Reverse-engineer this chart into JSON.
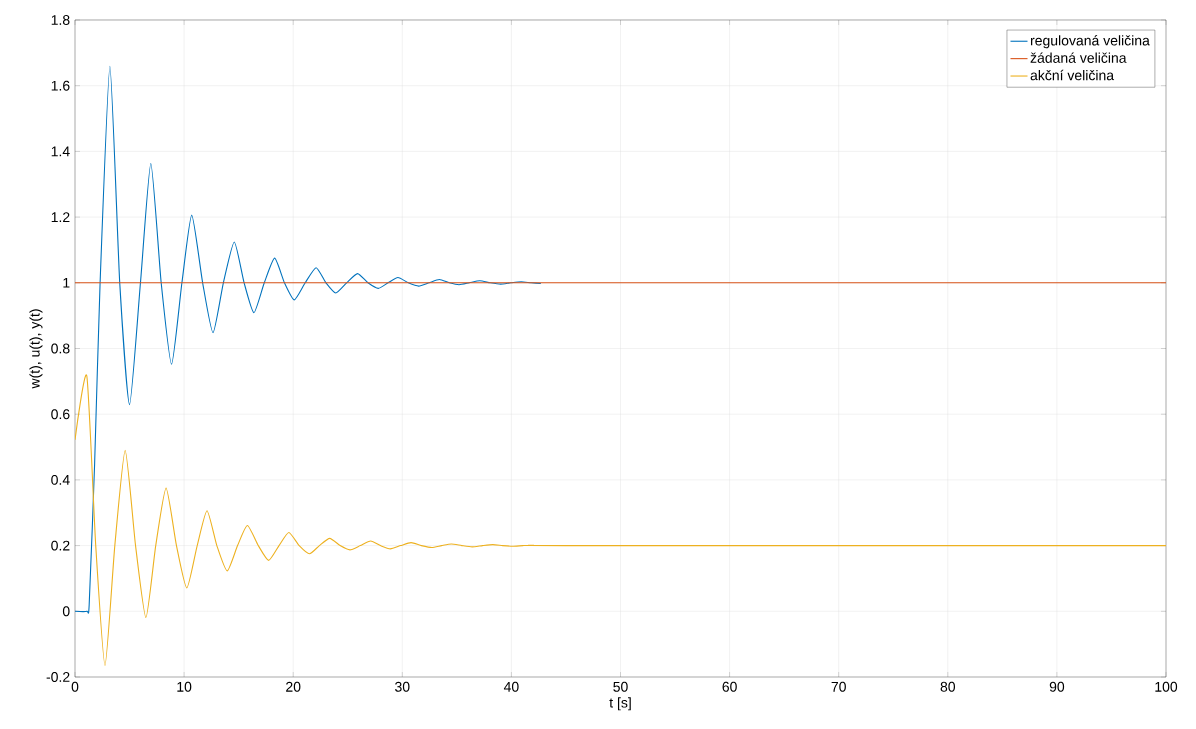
{
  "chart_data": {
    "type": "line",
    "xlabel": "t [s]",
    "ylabel": "w(t), u(t), y(t)",
    "xlim": [
      0,
      100
    ],
    "ylim": [
      -0.2,
      1.8
    ],
    "xticks": [
      0,
      10,
      20,
      30,
      40,
      50,
      60,
      70,
      80,
      90,
      100
    ],
    "yticks": [
      -0.2,
      0,
      0.2,
      0.4,
      0.6,
      0.8,
      1,
      1.2,
      1.4,
      1.6,
      1.8
    ],
    "grid": true,
    "legend": "top right",
    "series": [
      {
        "name": "regulovaná veličina",
        "color": "#0072bd",
        "x": [
          0,
          1.1,
          1.3,
          1.8,
          2.3,
          3.2,
          4.1,
          5.0,
          6.0,
          6.95,
          7.9,
          8.85,
          9.8,
          10.7,
          11.7,
          12.65,
          13.6,
          14.6,
          15.5,
          16.4,
          17.35,
          18.3,
          19.2,
          20.1,
          21.1,
          22.1,
          23.0,
          23.9,
          24.9,
          25.9,
          26.85,
          27.8,
          28.7,
          29.6,
          30.55,
          31.5,
          32.45,
          33.4,
          34.3,
          35.2,
          36.15,
          37.1,
          38.05,
          39.0,
          39.95,
          40.9,
          41.8,
          42.7
        ],
        "values": [
          0,
          0,
          0.02,
          0.45,
          1.0,
          1.659,
          1.0,
          0.629,
          1.0,
          1.363,
          1.0,
          0.752,
          1.0,
          1.206,
          1.0,
          0.848,
          1.0,
          1.124,
          1.0,
          0.909,
          1.0,
          1.075,
          1.0,
          0.948,
          1.0,
          1.046,
          1.0,
          0.969,
          1.0,
          1.028,
          1.0,
          0.983,
          1.0,
          1.016,
          1.0,
          0.99,
          1.0,
          1.01,
          1.0,
          0.994,
          1.0,
          1.006,
          1.0,
          0.996,
          1.0,
          1.003,
          1.0,
          0.998
        ]
      },
      {
        "name": "žádaná veličina",
        "color": "#d95319",
        "x": [
          0,
          100
        ],
        "values": [
          1,
          1
        ]
      },
      {
        "name": "akční veličina",
        "color": "#edb120",
        "x": [
          0,
          1.08,
          1.9,
          2.75,
          3.65,
          4.6,
          5.55,
          6.5,
          7.4,
          8.35,
          9.3,
          10.25,
          11.2,
          12.1,
          13.0,
          13.95,
          14.9,
          15.8,
          16.8,
          17.75,
          18.7,
          19.6,
          20.55,
          21.5,
          22.4,
          23.35,
          24.3,
          25.2,
          26.15,
          27.1,
          28.0,
          28.9,
          29.85,
          30.8,
          31.75,
          32.7,
          33.6,
          34.5,
          35.45,
          36.4,
          37.35,
          38.3,
          39.2,
          40.1,
          41.05,
          42,
          45,
          100
        ],
        "values": [
          0.522,
          0.717,
          0.2,
          -0.165,
          0.2,
          0.49,
          0.2,
          -0.019,
          0.2,
          0.375,
          0.2,
          0.071,
          0.2,
          0.306,
          0.2,
          0.123,
          0.2,
          0.261,
          0.2,
          0.155,
          0.2,
          0.24,
          0.2,
          0.175,
          0.2,
          0.222,
          0.2,
          0.187,
          0.2,
          0.214,
          0.2,
          0.19,
          0.2,
          0.209,
          0.2,
          0.194,
          0.2,
          0.205,
          0.2,
          0.196,
          0.2,
          0.203,
          0.2,
          0.198,
          0.2,
          0.201,
          0.2,
          0.2
        ]
      }
    ]
  }
}
